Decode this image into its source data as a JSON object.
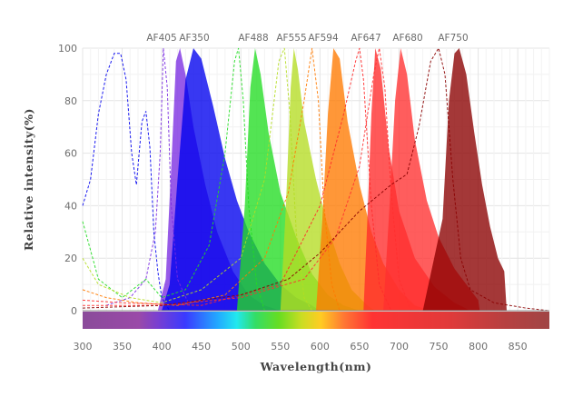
{
  "chart_data": {
    "type": "area",
    "title": "",
    "xlabel": "Wavelength(nm)",
    "ylabel": "Relative  intensity(%)",
    "xlim": [
      300,
      890
    ],
    "ylim": [
      0,
      100
    ],
    "x_ticks": [
      300,
      350,
      400,
      450,
      500,
      550,
      600,
      650,
      700,
      750,
      800,
      850
    ],
    "y_ticks": [
      0,
      20,
      40,
      60,
      80,
      100
    ],
    "grid": true,
    "legend": "dye labels along the top edge",
    "spectrum_bar": true,
    "series": [
      {
        "name": "AF405",
        "color": "#7a2be2",
        "excitation": [
          [
            330,
            2
          ],
          [
            360,
            5
          ],
          [
            380,
            12
          ],
          [
            392,
            30
          ],
          [
            398,
            60
          ],
          [
            402,
            100
          ],
          [
            407,
            85
          ],
          [
            412,
            40
          ],
          [
            420,
            12
          ],
          [
            435,
            2
          ]
        ],
        "emission": [
          [
            395,
            0
          ],
          [
            405,
            12
          ],
          [
            412,
            55
          ],
          [
            418,
            95
          ],
          [
            423,
            100
          ],
          [
            430,
            90
          ],
          [
            440,
            70
          ],
          [
            455,
            48
          ],
          [
            470,
            30
          ],
          [
            490,
            15
          ],
          [
            510,
            6
          ],
          [
            530,
            2
          ],
          [
            550,
            0
          ]
        ]
      },
      {
        "name": "AF350",
        "color": "#0000ee",
        "excitation": [
          [
            300,
            40
          ],
          [
            310,
            50
          ],
          [
            320,
            75
          ],
          [
            330,
            90
          ],
          [
            340,
            98
          ],
          [
            348,
            98
          ],
          [
            355,
            88
          ],
          [
            362,
            60
          ],
          [
            368,
            48
          ],
          [
            375,
            72
          ],
          [
            380,
            76
          ],
          [
            385,
            62
          ],
          [
            390,
            30
          ],
          [
            395,
            15
          ],
          [
            400,
            5
          ],
          [
            410,
            0
          ]
        ],
        "emission": [
          [
            400,
            0
          ],
          [
            410,
            10
          ],
          [
            420,
            50
          ],
          [
            430,
            88
          ],
          [
            440,
            100
          ],
          [
            450,
            96
          ],
          [
            465,
            78
          ],
          [
            480,
            58
          ],
          [
            495,
            42
          ],
          [
            510,
            30
          ],
          [
            530,
            18
          ],
          [
            550,
            10
          ],
          [
            570,
            5
          ],
          [
            590,
            2
          ],
          [
            600,
            0
          ]
        ]
      },
      {
        "name": "AF488",
        "color": "#22dd22",
        "excitation": [
          [
            300,
            34
          ],
          [
            320,
            12
          ],
          [
            350,
            5
          ],
          [
            380,
            12
          ],
          [
            400,
            5
          ],
          [
            430,
            8
          ],
          [
            460,
            25
          ],
          [
            480,
            60
          ],
          [
            492,
            95
          ],
          [
            497,
            100
          ],
          [
            503,
            80
          ],
          [
            510,
            40
          ],
          [
            520,
            10
          ],
          [
            530,
            0
          ]
        ],
        "emission": [
          [
            495,
            0
          ],
          [
            505,
            40
          ],
          [
            512,
            85
          ],
          [
            518,
            100
          ],
          [
            525,
            90
          ],
          [
            535,
            68
          ],
          [
            550,
            45
          ],
          [
            570,
            28
          ],
          [
            590,
            14
          ],
          [
            610,
            6
          ],
          [
            630,
            2
          ],
          [
            650,
            0
          ]
        ]
      },
      {
        "name": "AF555",
        "color": "#b5dd22",
        "excitation": [
          [
            300,
            20
          ],
          [
            320,
            10
          ],
          [
            360,
            5
          ],
          [
            400,
            3
          ],
          [
            450,
            8
          ],
          [
            500,
            20
          ],
          [
            530,
            50
          ],
          [
            548,
            95
          ],
          [
            555,
            100
          ],
          [
            562,
            75
          ],
          [
            570,
            30
          ],
          [
            580,
            5
          ],
          [
            590,
            0
          ]
        ],
        "emission": [
          [
            550,
            0
          ],
          [
            557,
            40
          ],
          [
            563,
            85
          ],
          [
            567,
            100
          ],
          [
            572,
            92
          ],
          [
            580,
            72
          ],
          [
            595,
            50
          ],
          [
            610,
            32
          ],
          [
            625,
            18
          ],
          [
            640,
            8
          ],
          [
            660,
            2
          ],
          [
            670,
            0
          ]
        ]
      },
      {
        "name": "AF594",
        "color": "#ff7a00",
        "excitation": [
          [
            300,
            8
          ],
          [
            330,
            5
          ],
          [
            370,
            3
          ],
          [
            420,
            2
          ],
          [
            480,
            6
          ],
          [
            530,
            20
          ],
          [
            560,
            45
          ],
          [
            580,
            80
          ],
          [
            590,
            100
          ],
          [
            598,
            80
          ],
          [
            605,
            40
          ],
          [
            615,
            10
          ],
          [
            625,
            0
          ]
        ],
        "emission": [
          [
            595,
            0
          ],
          [
            603,
            35
          ],
          [
            610,
            75
          ],
          [
            617,
            100
          ],
          [
            625,
            96
          ],
          [
            635,
            72
          ],
          [
            650,
            48
          ],
          [
            665,
            30
          ],
          [
            680,
            18
          ],
          [
            700,
            8
          ],
          [
            720,
            2
          ],
          [
            740,
            0
          ]
        ]
      },
      {
        "name": "AF647",
        "color": "#ff2a2a",
        "excitation": [
          [
            300,
            4
          ],
          [
            350,
            3
          ],
          [
            450,
            2
          ],
          [
            550,
            10
          ],
          [
            600,
            40
          ],
          [
            630,
            75
          ],
          [
            645,
            95
          ],
          [
            650,
            100
          ],
          [
            655,
            88
          ],
          [
            665,
            40
          ],
          [
            675,
            10
          ],
          [
            690,
            0
          ]
        ],
        "emission": [
          [
            655,
            0
          ],
          [
            660,
            35
          ],
          [
            665,
            75
          ],
          [
            670,
            100
          ],
          [
            677,
            92
          ],
          [
            687,
            62
          ],
          [
            700,
            38
          ],
          [
            720,
            20
          ],
          [
            745,
            9
          ],
          [
            770,
            3
          ],
          [
            790,
            0
          ]
        ]
      },
      {
        "name": "AF680",
        "color": "#ff3030",
        "excitation": [
          [
            300,
            2
          ],
          [
            400,
            2
          ],
          [
            500,
            5
          ],
          [
            580,
            12
          ],
          [
            620,
            28
          ],
          [
            650,
            55
          ],
          [
            668,
            90
          ],
          [
            675,
            100
          ],
          [
            682,
            85
          ],
          [
            690,
            45
          ],
          [
            700,
            12
          ],
          [
            715,
            0
          ]
        ],
        "emission": [
          [
            680,
            0
          ],
          [
            688,
            40
          ],
          [
            695,
            80
          ],
          [
            702,
            100
          ],
          [
            710,
            90
          ],
          [
            720,
            65
          ],
          [
            735,
            42
          ],
          [
            750,
            28
          ],
          [
            770,
            16
          ],
          [
            790,
            8
          ],
          [
            800,
            4
          ],
          [
            802,
            0
          ]
        ]
      },
      {
        "name": "AF750",
        "color": "#8b0000",
        "excitation": [
          [
            300,
            1
          ],
          [
            400,
            2
          ],
          [
            500,
            6
          ],
          [
            560,
            12
          ],
          [
            600,
            22
          ],
          [
            650,
            38
          ],
          [
            690,
            48
          ],
          [
            710,
            52
          ],
          [
            725,
            70
          ],
          [
            740,
            95
          ],
          [
            750,
            100
          ],
          [
            758,
            90
          ],
          [
            768,
            50
          ],
          [
            778,
            20
          ],
          [
            790,
            8
          ],
          [
            820,
            3
          ],
          [
            860,
            1
          ],
          [
            890,
            0
          ]
        ],
        "emission": [
          [
            730,
            0
          ],
          [
            755,
            35
          ],
          [
            763,
            80
          ],
          [
            770,
            98
          ],
          [
            776,
            100
          ],
          [
            785,
            90
          ],
          [
            795,
            68
          ],
          [
            805,
            48
          ],
          [
            815,
            32
          ],
          [
            825,
            20
          ],
          [
            833,
            15
          ],
          [
            836,
            0
          ]
        ]
      }
    ]
  }
}
